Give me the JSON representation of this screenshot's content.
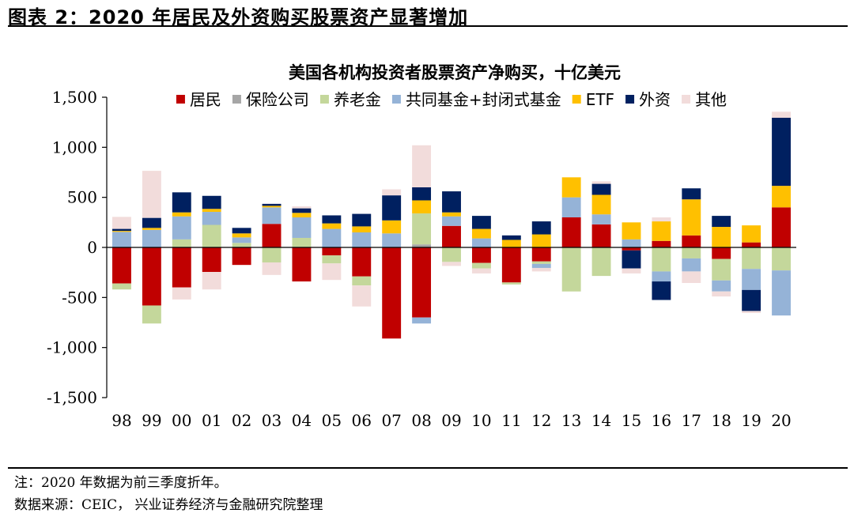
{
  "figure": {
    "title": "图表 2：2020 年居民及外资购买股票资产显著增加"
  },
  "notes": {
    "note": "注：2020 年数据为前三季度折年。",
    "source": "数据来源：CEIC，  兴业证券经济与金融研究院整理"
  },
  "chart_data": {
    "type": "bar",
    "stacked": true,
    "title": "美国各机构投资者股票资产净购买，十亿美元",
    "xlabel": "",
    "ylabel": "",
    "categories": [
      "98",
      "99",
      "00",
      "01",
      "02",
      "03",
      "04",
      "05",
      "06",
      "07",
      "08",
      "09",
      "10",
      "11",
      "12",
      "13",
      "14",
      "15",
      "16",
      "17",
      "18",
      "19",
      "20"
    ],
    "ylim": [
      -1500,
      1500
    ],
    "yticks": [
      1500,
      1000,
      500,
      0,
      -500,
      -1000,
      -1500
    ],
    "ytick_labels": [
      "1,500",
      "1,000",
      "500",
      "0",
      "-500",
      "-1,000",
      "-1,500"
    ],
    "grid": false,
    "legend_position": "top",
    "series": [
      {
        "name": "居民",
        "color": "#C00000",
        "values": [
          -360,
          -580,
          -400,
          -245,
          -175,
          235,
          -340,
          -80,
          -290,
          -910,
          -700,
          215,
          -155,
          -350,
          -140,
          300,
          230,
          -30,
          65,
          120,
          -115,
          50,
          400
        ]
      },
      {
        "name": "保险公司",
        "color": "#A6A6A6",
        "values": [
          0,
          0,
          0,
          0,
          0,
          0,
          0,
          0,
          0,
          0,
          30,
          0,
          0,
          0,
          0,
          0,
          0,
          0,
          0,
          0,
          0,
          0,
          0
        ]
      },
      {
        "name": "养老金",
        "color": "#C4D79B",
        "values": [
          -60,
          -180,
          80,
          225,
          45,
          -150,
          95,
          -80,
          -90,
          0,
          310,
          -145,
          -55,
          -20,
          -25,
          -440,
          -285,
          0,
          -240,
          -110,
          -215,
          -215,
          -230
        ]
      },
      {
        "name": "共同基金+封闭式基金",
        "color": "#95B3D7",
        "values": [
          155,
          175,
          230,
          130,
          55,
          165,
          205,
          185,
          150,
          140,
          -60,
          95,
          90,
          0,
          -40,
          200,
          100,
          80,
          -100,
          -130,
          -110,
          -210,
          -450
        ]
      },
      {
        "name": "ETF",
        "color": "#FFC000",
        "values": [
          10,
          20,
          40,
          30,
          40,
          15,
          45,
          55,
          60,
          130,
          130,
          40,
          95,
          75,
          130,
          200,
          195,
          170,
          195,
          360,
          205,
          170,
          215
        ]
      },
      {
        "name": "外资",
        "color": "#002060",
        "values": [
          20,
          100,
          200,
          130,
          55,
          20,
          45,
          80,
          125,
          250,
          130,
          210,
          130,
          45,
          130,
          0,
          110,
          -180,
          -185,
          110,
          110,
          -210,
          680
        ]
      },
      {
        "name": "其他",
        "color": "#F2DCDB",
        "values": [
          120,
          470,
          -120,
          -175,
          0,
          -125,
          20,
          -165,
          -210,
          60,
          420,
          -40,
          -50,
          0,
          -35,
          0,
          25,
          -50,
          40,
          -115,
          -50,
          -20,
          60
        ]
      }
    ]
  }
}
